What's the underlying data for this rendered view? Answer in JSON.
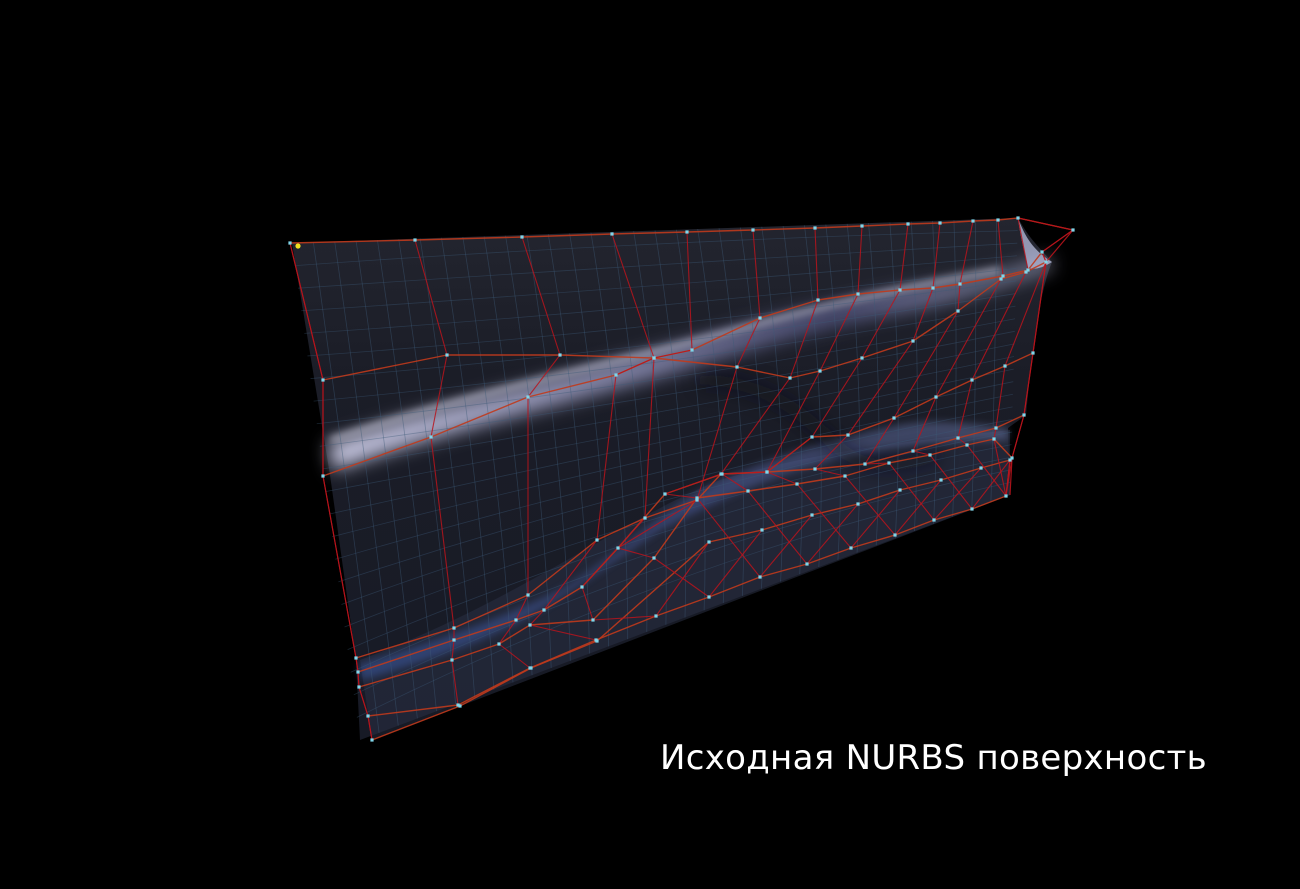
{
  "caption": "Исходная NURBS поверхность",
  "colors": {
    "background": "#000000",
    "surface_dark": "#1b1d27",
    "surface_mid": "#3a4470",
    "surface_highlight": "#c8c8e6",
    "control_polygon": "#c03a1c",
    "control_hull_edges": "#b8141c",
    "iso_lines": "#3d5a78",
    "control_point": "#7fd6ea",
    "selected_point": "#f0e020",
    "caption_text": "#ffffff"
  },
  "icons": {
    "control_point": "control-point-icon",
    "selected_point": "selected-point-icon"
  }
}
